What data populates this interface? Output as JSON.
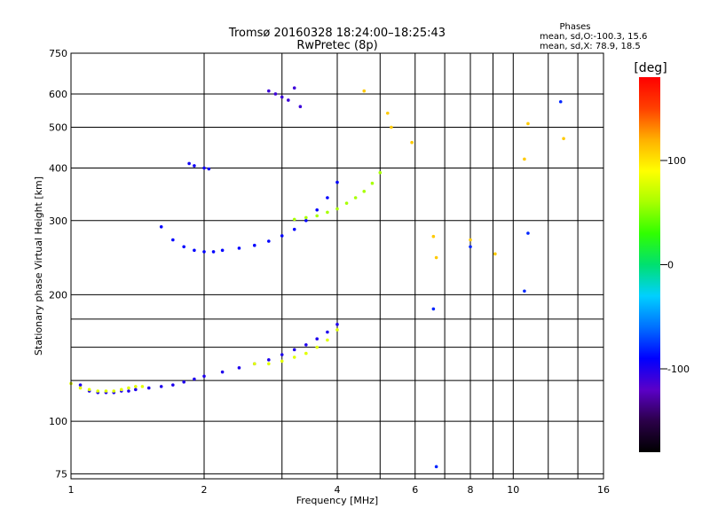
{
  "chart_data": {
    "type": "scatter",
    "title": "Tromsø 20160328 18:24:00–18:25:43",
    "subtitle": "RwPretec (8p)",
    "xlabel": "Frequency [MHz]",
    "ylabel": "Stationary phase Virtual Height [km]",
    "x_scale": "log",
    "y_scale": "log",
    "xlim": [
      1,
      16
    ],
    "ylim": [
      73,
      750
    ],
    "x_ticks": [
      1,
      2,
      4,
      6,
      8,
      10,
      16
    ],
    "y_ticks": [
      75,
      100,
      200,
      300,
      400,
      500,
      600,
      750
    ],
    "x_grid_extra": [
      3,
      5,
      7,
      9,
      12,
      14
    ],
    "y_grid_extra": [
      125,
      150,
      175
    ],
    "grid": true,
    "colorbar": {
      "label": "[deg]",
      "range": [
        -180,
        180
      ],
      "ticks": [
        100,
        0,
        -100
      ],
      "colors": [
        "#000000",
        "#2b0049",
        "#5b00c8",
        "#0000ff",
        "#0070ff",
        "#00d0ff",
        "#00e070",
        "#30ff00",
        "#a8ff00",
        "#ffff00",
        "#ffb000",
        "#ff4000",
        "#ff0000"
      ]
    },
    "stats": {
      "heading": "Phases",
      "line1": "mean, sd,O:-100.3, 15.6",
      "line2": "mean, sd,X: 78.9, 18.5"
    },
    "series": [
      {
        "trace": "O",
        "color_value": -100,
        "x": [
          1.05,
          1.1,
          1.15,
          1.2,
          1.25,
          1.3,
          1.35,
          1.4,
          1.5,
          1.6,
          1.7,
          1.8,
          1.9,
          2.0,
          2.2,
          2.4,
          2.6,
          2.8,
          3.0,
          3.2,
          3.4,
          3.6,
          3.8,
          4.0
        ],
        "y": [
          122,
          118,
          117,
          117,
          117,
          118,
          118,
          119,
          120,
          121,
          122,
          124,
          126,
          128,
          131,
          134,
          137,
          140,
          144,
          148,
          152,
          157,
          163,
          170
        ]
      },
      {
        "trace": "X",
        "color_value": 80,
        "x": [
          1.0,
          1.05,
          1.1,
          1.15,
          1.2,
          1.25,
          1.3,
          1.35,
          1.4,
          1.45,
          2.6,
          2.8,
          3.0,
          3.2,
          3.4,
          3.6,
          3.8,
          4.0
        ],
        "y": [
          123,
          120,
          119,
          118,
          118,
          118,
          119,
          120,
          121,
          121,
          137,
          137,
          139,
          142,
          145,
          150,
          156,
          165
        ]
      },
      {
        "trace": "O",
        "color_value": -90,
        "x": [
          1.6,
          1.7,
          1.8,
          1.9,
          2.0,
          2.1,
          2.2,
          2.4,
          2.6,
          2.8,
          3.0,
          3.2,
          3.4,
          3.6,
          3.8,
          4.0
        ],
        "y": [
          290,
          270,
          260,
          255,
          253,
          253,
          255,
          258,
          262,
          268,
          276,
          286,
          300,
          318,
          340,
          370
        ]
      },
      {
        "trace": "X",
        "color_value": 60,
        "x": [
          3.2,
          3.4,
          3.6,
          3.8,
          4.0,
          4.2,
          4.4,
          4.6,
          4.8,
          5.0
        ],
        "y": [
          302,
          305,
          308,
          314,
          320,
          330,
          340,
          352,
          368,
          390
        ]
      },
      {
        "trace": "O",
        "color_value": -95,
        "x": [
          1.85,
          1.9,
          2.0,
          2.05
        ],
        "y": [
          410,
          405,
          400,
          398
        ]
      },
      {
        "trace": "O",
        "color_value": -110,
        "x": [
          2.8,
          2.9,
          3.0,
          3.1,
          3.2,
          3.3
        ],
        "y": [
          610,
          600,
          590,
          580,
          620,
          560
        ]
      },
      {
        "trace": "X",
        "color_value": 110,
        "x": [
          4.6,
          5.2,
          5.3,
          5.9,
          6.6,
          6.7,
          8.0,
          9.1,
          10.6,
          10.8,
          13.0
        ],
        "y": [
          610,
          540,
          500,
          460,
          275,
          245,
          270,
          250,
          420,
          510,
          470
        ]
      },
      {
        "trace": "O",
        "color_value": -80,
        "x": [
          6.6,
          6.7,
          8.0,
          10.6,
          10.8,
          12.8
        ],
        "y": [
          185,
          78,
          260,
          204,
          280,
          575
        ]
      }
    ]
  }
}
